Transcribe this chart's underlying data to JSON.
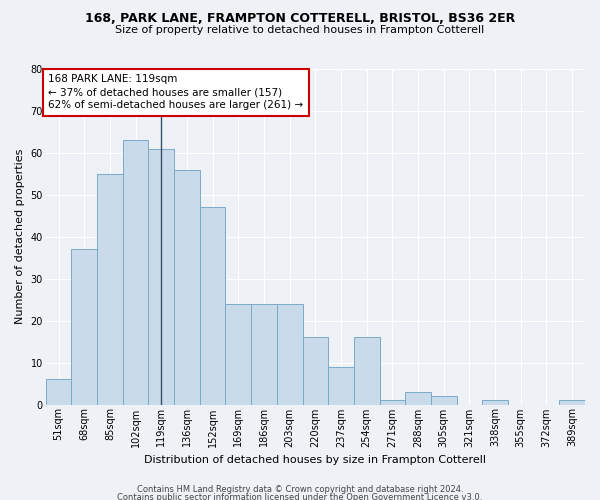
{
  "title1": "168, PARK LANE, FRAMPTON COTTERELL, BRISTOL, BS36 2ER",
  "title2": "Size of property relative to detached houses in Frampton Cotterell",
  "xlabel": "Distribution of detached houses by size in Frampton Cotterell",
  "ylabel": "Number of detached properties",
  "categories": [
    "51sqm",
    "68sqm",
    "85sqm",
    "102sqm",
    "119sqm",
    "136sqm",
    "152sqm",
    "169sqm",
    "186sqm",
    "203sqm",
    "220sqm",
    "237sqm",
    "254sqm",
    "271sqm",
    "288sqm",
    "305sqm",
    "321sqm",
    "338sqm",
    "355sqm",
    "372sqm",
    "389sqm"
  ],
  "values": [
    6,
    37,
    55,
    63,
    61,
    56,
    47,
    24,
    24,
    24,
    16,
    9,
    16,
    1,
    3,
    2,
    0,
    1,
    0,
    0,
    1
  ],
  "bar_color": "#c9daea",
  "bar_edge_color": "#7aaac8",
  "vline_x": 4,
  "vline_color": "#3a4f6e",
  "ylim": [
    0,
    80
  ],
  "yticks": [
    0,
    10,
    20,
    30,
    40,
    50,
    60,
    70,
    80
  ],
  "annotation_text": "168 PARK LANE: 119sqm\n← 37% of detached houses are smaller (157)\n62% of semi-detached houses are larger (261) →",
  "annotation_box_color": "#ffffff",
  "annotation_border_color": "#cc0000",
  "footer1": "Contains HM Land Registry data © Crown copyright and database right 2024.",
  "footer2": "Contains public sector information licensed under the Open Government Licence v3.0.",
  "bg_color": "#eef2f7",
  "grid_color": "#ffffff",
  "title1_fontsize": 9,
  "title2_fontsize": 8,
  "xlabel_fontsize": 8,
  "ylabel_fontsize": 8,
  "tick_fontsize": 7,
  "annot_fontsize": 7.5,
  "footer_fontsize": 6
}
